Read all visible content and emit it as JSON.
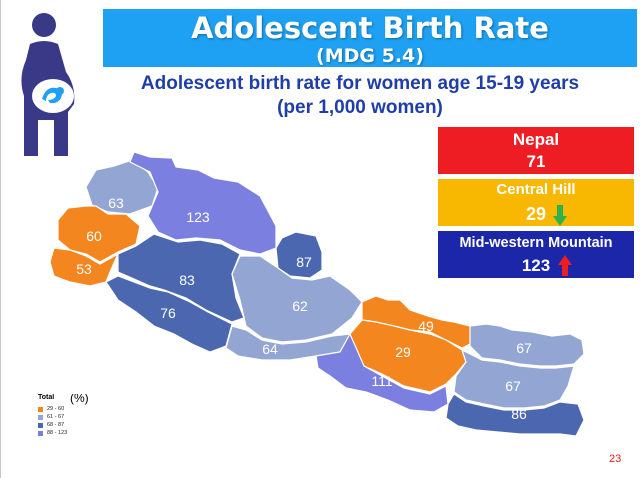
{
  "header": {
    "title": "Adolescent Birth Rate",
    "subtitle": "(MDG 5.4)"
  },
  "description": {
    "line1": "Adolescent birth rate for women age 15-19 years",
    "line2": "(per 1,000 women)"
  },
  "stats": {
    "nepal": {
      "label": "Nepal",
      "value": "71",
      "color": "#ee1d24"
    },
    "central_hill": {
      "label": "Central Hill",
      "value": "29",
      "color": "#f8b700",
      "trend": "down",
      "arrow_color": "#2bb24a"
    },
    "mid_western_mountain": {
      "label": "Mid-western Mountain",
      "value": "123",
      "color": "#1b27a8",
      "trend": "up",
      "arrow_color": "#ee1d24"
    }
  },
  "map": {
    "regions": [
      {
        "id": "far-western-mountain",
        "value": "63",
        "color": "#93a5d3"
      },
      {
        "id": "mid-western-mountain",
        "value": "123",
        "color": "#7b80e0"
      },
      {
        "id": "far-western-hill",
        "value": "60",
        "color": "#f4861f"
      },
      {
        "id": "far-western-terai",
        "value": "53",
        "color": "#f4861f"
      },
      {
        "id": "mid-western-hill",
        "value": "83",
        "color": "#4a67b0"
      },
      {
        "id": "mid-western-terai",
        "value": "76",
        "color": "#4a67b0"
      },
      {
        "id": "western-mountain",
        "value": "87",
        "color": "#4a67b0"
      },
      {
        "id": "western-hill",
        "value": "62",
        "color": "#93a5d3"
      },
      {
        "id": "western-terai",
        "value": "64",
        "color": "#93a5d3"
      },
      {
        "id": "central-mountain",
        "value": "49",
        "color": "#f4861f"
      },
      {
        "id": "central-hill",
        "value": "29",
        "color": "#f4861f"
      },
      {
        "id": "central-terai",
        "value": "111",
        "color": "#7b80e0"
      },
      {
        "id": "eastern-mountain",
        "value": "67",
        "color": "#93a5d3"
      },
      {
        "id": "eastern-hill",
        "value": "67",
        "color": "#93a5d3"
      },
      {
        "id": "eastern-terai",
        "value": "86",
        "color": "#4a67b0"
      }
    ]
  },
  "legend": {
    "title": "Total",
    "unit": "(%)",
    "items": [
      {
        "label": "29 - 60",
        "color": "#f4861f"
      },
      {
        "label": "61 - 67",
        "color": "#93a5d3"
      },
      {
        "label": "68 - 87",
        "color": "#4a67b0"
      },
      {
        "label": "88 - 123",
        "color": "#7b80e0"
      }
    ]
  },
  "icons": {
    "mother": "pregnant-woman-icon"
  },
  "footer": {
    "page_number": "23"
  }
}
